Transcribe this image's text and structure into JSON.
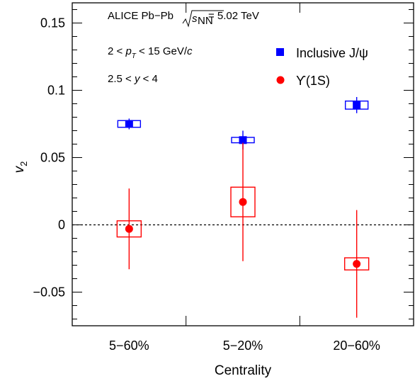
{
  "chart_data": {
    "type": "scatter",
    "xlabel": "Centrality",
    "ylabel": "v",
    "ylabel_sub": "2",
    "categories": [
      "5−60%",
      "5−20%",
      "20−60%"
    ],
    "ylim": [
      -0.075,
      0.165
    ],
    "yticks": [
      -0.05,
      0,
      0.05,
      0.1,
      0.15
    ],
    "ytick_labels": [
      "−0.05",
      "0",
      "0.05",
      "0.1",
      "0.15"
    ],
    "zero_line": true,
    "annotations": {
      "collab": "ALICE Pb−Pb",
      "energy_prefix": "s",
      "energy_sub": "NN",
      "energy_value": " = 5.02 TeV",
      "pt_left": "2 < ",
      "pt_var": "p",
      "pt_sub": "T",
      "pt_right": " < 15 GeV/",
      "pt_unit": "c",
      "y_left": "2.5 < ",
      "y_var": "y",
      "y_right": " < 4"
    },
    "legend_position": "top-right",
    "series": [
      {
        "name": "Inclusive J/ψ",
        "color": "#0000ff",
        "marker": "square",
        "values": [
          0.075,
          0.063,
          0.089
        ],
        "stat_err": [
          0.004,
          0.007,
          0.006
        ],
        "syst_err": [
          0.0025,
          0.002,
          0.003
        ]
      },
      {
        "name": "ϒ(1S)",
        "color": "#ff0000",
        "marker": "circle",
        "values": [
          -0.003,
          0.017,
          -0.029
        ],
        "stat_err": [
          0.03,
          0.044,
          0.04
        ],
        "syst_err": [
          0.006,
          0.011,
          0.0045
        ]
      }
    ]
  }
}
